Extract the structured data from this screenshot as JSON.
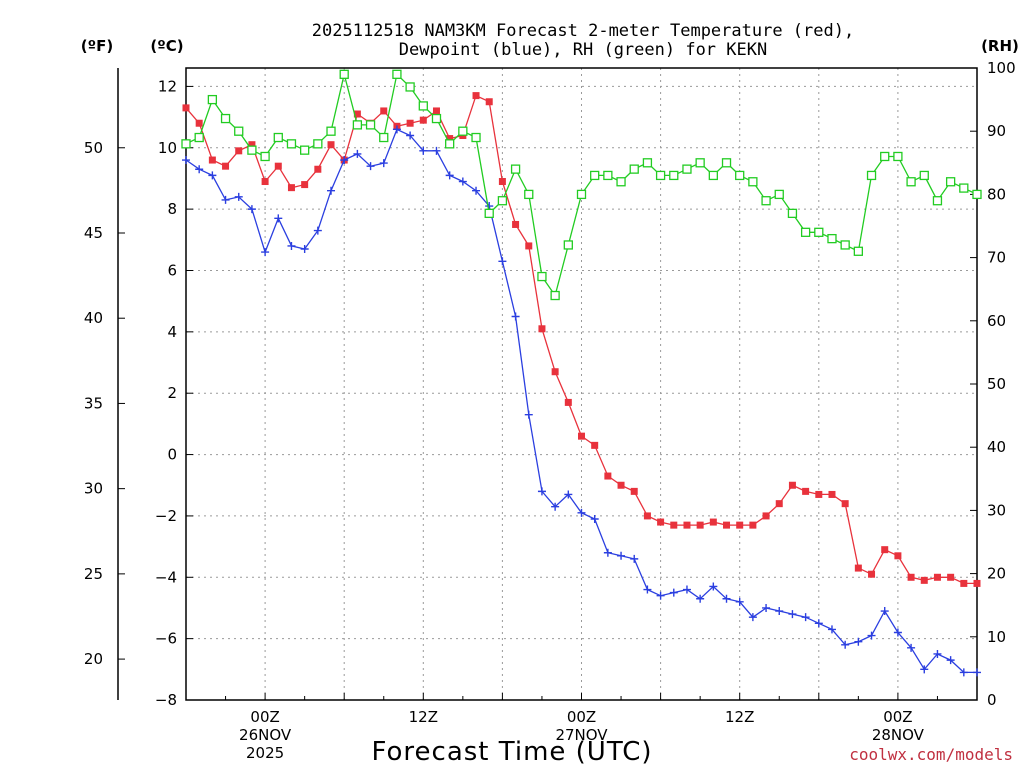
{
  "chart_data": {
    "type": "line",
    "title_lines": [
      "2025112518 NAM3KM Forecast 2-meter Temperature (red),",
      "Dewpoint (blue), RH (green) for KEKN"
    ],
    "xlabel": "Forecast Time (UTC)",
    "credit": "coolwx.com/models",
    "units": {
      "fahrenheit": "(ºF)",
      "celsius": "(ºC)",
      "rh": "(RH)"
    },
    "x_range_hours": [
      -6,
      54
    ],
    "celsius_range": [
      -8,
      12.6
    ],
    "rh_range": [
      0,
      100
    ],
    "x_ticks": [
      {
        "hour": 0,
        "lines": [
          "00Z",
          "26NOV",
          "2025"
        ]
      },
      {
        "hour": 12,
        "lines": [
          "12Z"
        ]
      },
      {
        "hour": 24,
        "lines": [
          "00Z",
          "27NOV"
        ]
      },
      {
        "hour": 36,
        "lines": [
          "12Z"
        ]
      },
      {
        "hour": 48,
        "lines": [
          "00Z",
          "28NOV"
        ]
      }
    ],
    "celsius_ticks": [
      "-8",
      "-6",
      "-4",
      "-2",
      "0",
      "2",
      "4",
      "6",
      "8",
      "10",
      "12"
    ],
    "fahrenheit_ticks": [
      "20",
      "25",
      "30",
      "35",
      "40",
      "45",
      "50"
    ],
    "rh_ticks": [
      "0",
      "10",
      "20",
      "30",
      "40",
      "50",
      "60",
      "70",
      "80",
      "90",
      "100"
    ],
    "series": [
      {
        "name": "Temperature",
        "unit": "C",
        "color": "#e8323c",
        "marker": "filled-square",
        "x": [
          -6,
          -5,
          -4,
          -3,
          -2,
          -1,
          0,
          1,
          2,
          3,
          4,
          5,
          6,
          7,
          8,
          9,
          10,
          11,
          12,
          13,
          14,
          15,
          16,
          17,
          18,
          19,
          20,
          21,
          22,
          23,
          24,
          25,
          26,
          27,
          28,
          29,
          30,
          31,
          32,
          33,
          34,
          35,
          36,
          37,
          38,
          39,
          40,
          41,
          42,
          43,
          44,
          45,
          46,
          47,
          48,
          49,
          50,
          51,
          52,
          53,
          54
        ],
        "values": [
          11.3,
          10.8,
          9.6,
          9.4,
          9.9,
          10.1,
          8.9,
          9.4,
          8.7,
          8.8,
          9.3,
          10.1,
          9.6,
          11.1,
          10.8,
          11.2,
          10.7,
          10.8,
          10.9,
          11.2,
          10.3,
          10.4,
          11.7,
          11.5,
          8.9,
          7.5,
          6.8,
          4.1,
          2.7,
          1.7,
          0.6,
          0.3,
          -0.7,
          -1.0,
          -1.2,
          -2.0,
          -2.2,
          -2.3,
          -2.3,
          -2.3,
          -2.2,
          -2.3,
          -2.3,
          -2.3,
          -2.0,
          -1.6,
          -1.0,
          -1.2,
          -1.3,
          -1.3,
          -1.6,
          -3.7,
          -3.9,
          -3.1,
          -3.3,
          -4.0,
          -4.1,
          -4.0,
          -4.0,
          -4.2,
          -4.2
        ]
      },
      {
        "name": "Dewpoint",
        "unit": "C",
        "color": "#2b3fe0",
        "marker": "plus",
        "x": [
          -6,
          -5,
          -4,
          -3,
          -2,
          -1,
          0,
          1,
          2,
          3,
          4,
          5,
          6,
          7,
          8,
          9,
          10,
          11,
          12,
          13,
          14,
          15,
          16,
          17,
          18,
          19,
          20,
          21,
          22,
          23,
          24,
          25,
          26,
          27,
          28,
          29,
          30,
          31,
          32,
          33,
          34,
          35,
          36,
          37,
          38,
          39,
          40,
          41,
          42,
          43,
          44,
          45,
          46,
          47,
          48,
          49,
          50,
          51,
          52,
          53,
          54
        ],
        "values": [
          9.6,
          9.3,
          9.1,
          8.3,
          8.4,
          8.0,
          6.6,
          7.7,
          6.8,
          6.7,
          7.3,
          8.6,
          9.6,
          9.8,
          9.4,
          9.5,
          10.6,
          10.4,
          9.9,
          9.9,
          9.1,
          8.9,
          8.6,
          8.1,
          6.3,
          4.5,
          1.3,
          -1.2,
          -1.7,
          -1.3,
          -1.9,
          -2.1,
          -3.2,
          -3.3,
          -3.4,
          -4.4,
          -4.6,
          -4.5,
          -4.4,
          -4.7,
          -4.3,
          -4.7,
          -4.8,
          -5.3,
          -5.0,
          -5.1,
          -5.2,
          -5.3,
          -5.5,
          -5.7,
          -6.2,
          -6.1,
          -5.9,
          -5.1,
          -5.8,
          -6.3,
          -7.0,
          -6.5,
          -6.7,
          -7.1,
          -7.1
        ]
      },
      {
        "name": "RH",
        "unit": "%",
        "color": "#22cc22",
        "marker": "open-square",
        "x": [
          -6,
          -5,
          -4,
          -3,
          -2,
          -1,
          0,
          1,
          2,
          3,
          4,
          5,
          6,
          7,
          8,
          9,
          10,
          11,
          12,
          13,
          14,
          15,
          16,
          17,
          18,
          19,
          20,
          21,
          22,
          23,
          24,
          25,
          26,
          27,
          28,
          29,
          30,
          31,
          32,
          33,
          34,
          35,
          36,
          37,
          38,
          39,
          40,
          41,
          42,
          43,
          44,
          45,
          46,
          47,
          48,
          49,
          50,
          51,
          52,
          53,
          54
        ],
        "values": [
          88,
          89,
          95,
          92,
          90,
          87,
          86,
          89,
          88,
          87,
          88,
          90,
          99,
          91,
          91,
          89,
          99,
          97,
          94,
          92,
          88,
          90,
          89,
          77,
          79,
          84,
          80,
          67,
          64,
          72,
          80,
          83,
          83,
          82,
          84,
          85,
          83,
          83,
          84,
          85,
          83,
          85,
          83,
          82,
          79,
          80,
          77,
          74,
          74,
          73,
          72,
          71,
          83,
          86,
          86,
          82,
          83,
          79,
          82,
          81,
          80
        ]
      }
    ]
  }
}
